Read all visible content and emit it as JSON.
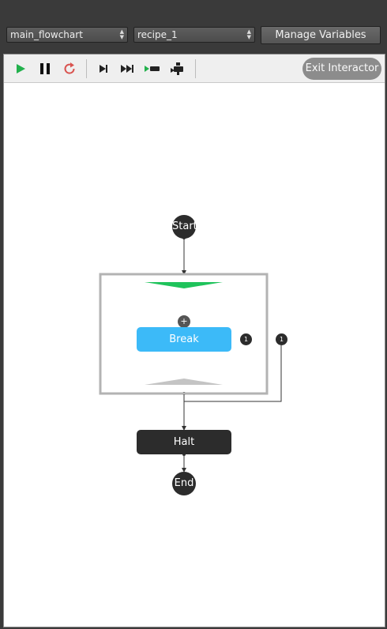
{
  "topbar": {
    "flowchart_select": {
      "value": "main_flowchart"
    },
    "recipe_select": {
      "value": "recipe_1"
    },
    "manage_variables_label": "Manage Variables"
  },
  "toolbar": {
    "buttons": [
      {
        "name": "play",
        "icon": "play-icon",
        "color": "#22b14c"
      },
      {
        "name": "pause",
        "icon": "pause-icon",
        "color": "#111111"
      },
      {
        "name": "restart",
        "icon": "restart-icon",
        "color": "#d9534f"
      },
      {
        "name": "step",
        "icon": "step-icon",
        "color": "#222222"
      },
      {
        "name": "fast-forward",
        "icon": "fast-forward-icon",
        "color": "#222222"
      },
      {
        "name": "step-into",
        "icon": "step-into-icon",
        "color": "#222222"
      },
      {
        "name": "step-out",
        "icon": "step-out-icon",
        "color": "#222222"
      }
    ],
    "exit_label": "Exit Interactor"
  },
  "flowchart": {
    "start_label": "Start",
    "loop_add_symbol": "+",
    "break_label": "Break",
    "break_badge": "1",
    "loop_badge": "1",
    "halt_label": "Halt",
    "end_label": "End",
    "colors": {
      "node_dark": "#2c2c2c",
      "break_block": "#3cbaf8",
      "loop_top_marker": "#1fc35b",
      "loop_bottom_marker": "#c4c4c4",
      "loop_border": "#b3b3b3"
    }
  }
}
